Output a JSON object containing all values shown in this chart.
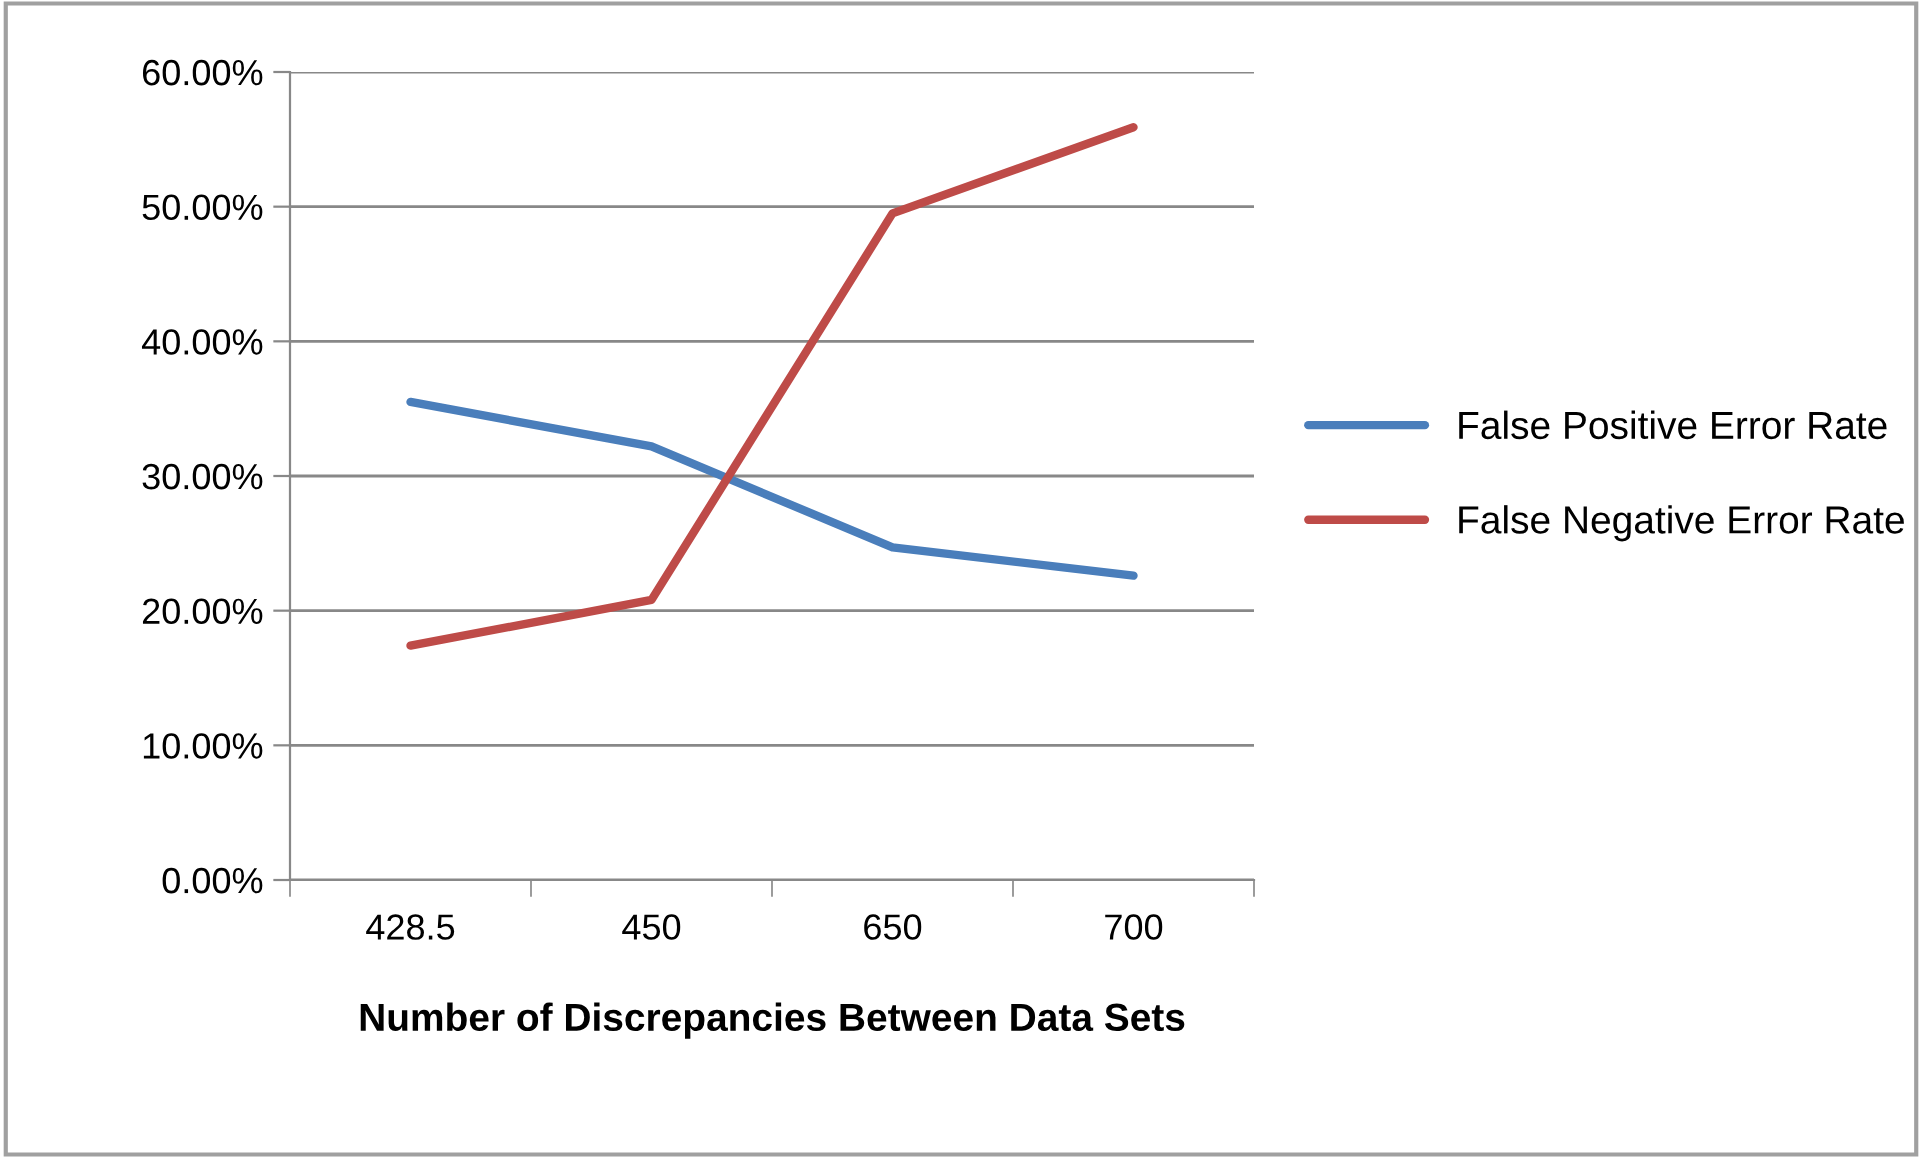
{
  "chart_data": {
    "type": "line",
    "xlabel": "Number of Discrepancies Between Data Sets",
    "categories": [
      "428.5",
      "450",
      "650",
      "700"
    ],
    "series": [
      {
        "name": "False Positive Error Rate",
        "color": "#4a7ebb",
        "values": [
          35.5,
          32.2,
          24.7,
          22.6
        ]
      },
      {
        "name": "False Negative Error Rate",
        "color": "#be4b48",
        "values": [
          17.4,
          20.8,
          49.5,
          55.9
        ]
      }
    ],
    "ylim": [
      0,
      60
    ],
    "yticks": [
      {
        "value": 0,
        "label": "0.00%"
      },
      {
        "value": 10,
        "label": "10.00%"
      },
      {
        "value": 20,
        "label": "20.00%"
      },
      {
        "value": 30,
        "label": "30.00%"
      },
      {
        "value": 40,
        "label": "40.00%"
      },
      {
        "value": 50,
        "label": "50.00%"
      },
      {
        "value": 60,
        "label": "60.00%"
      }
    ],
    "grid": "y",
    "legend": "right",
    "marker": "none",
    "line_style": "solid"
  }
}
